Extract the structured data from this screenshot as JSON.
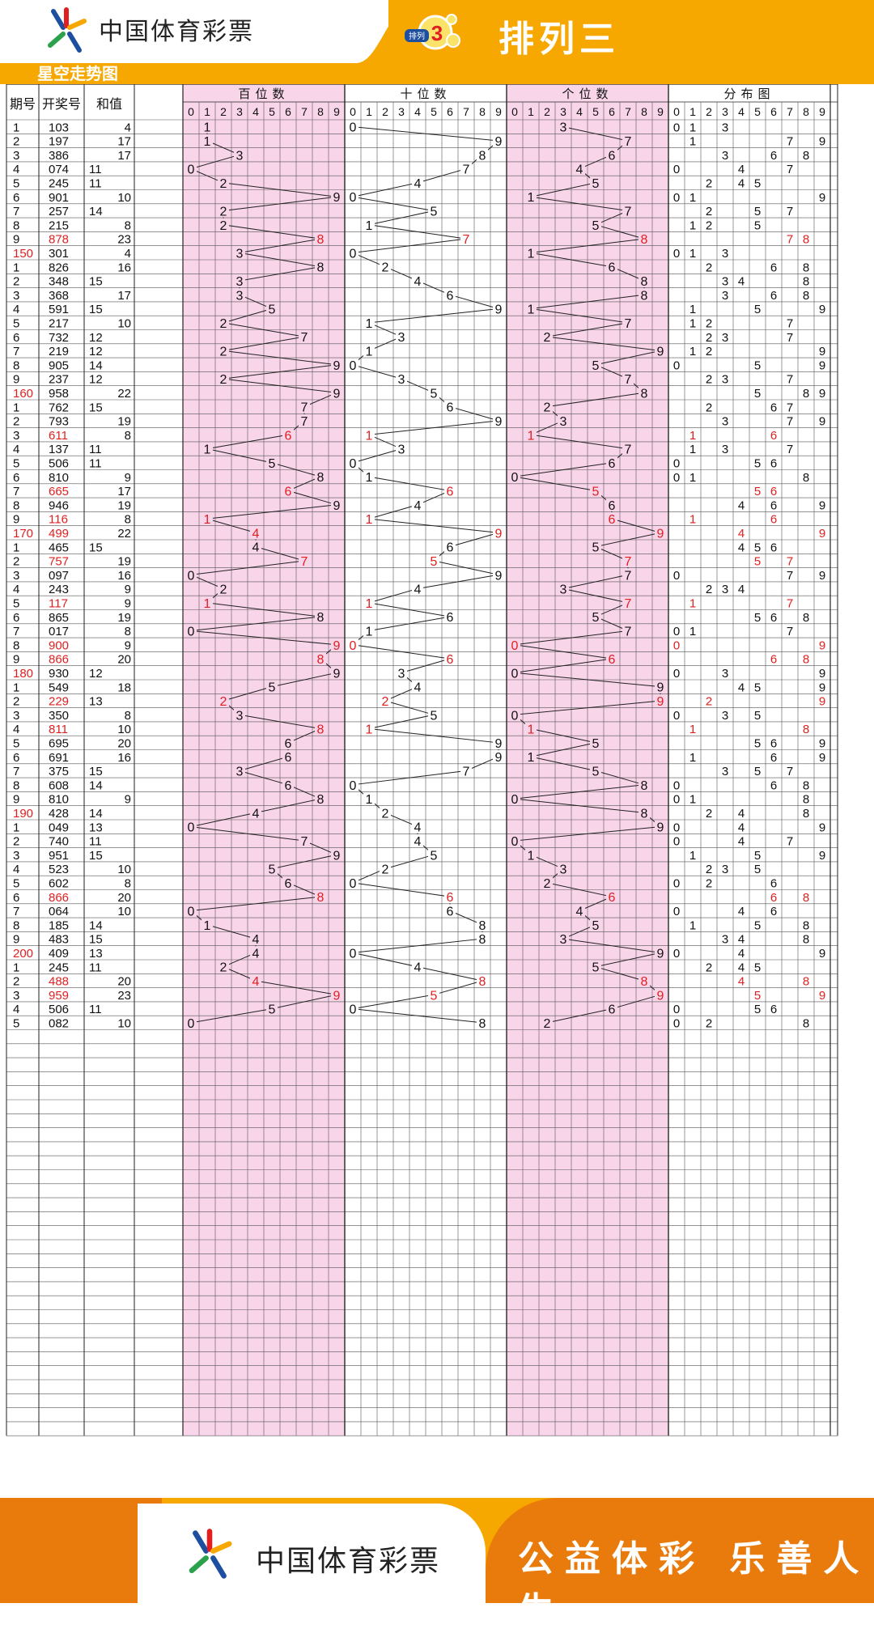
{
  "header": {
    "brand": "中国体育彩票",
    "badge_small": "排列",
    "badge_number": "3",
    "title": "排列三",
    "subtitle": "星空走势图"
  },
  "footer": {
    "brand": "中国体育彩票",
    "slogan": "公益体彩 乐善人生"
  },
  "table": {
    "col_headers": [
      "期号",
      "开奖号",
      "和值"
    ],
    "section_headers": [
      "百位数",
      "十位数",
      "个位数",
      "分布图"
    ],
    "digit_labels": [
      "0",
      "1",
      "2",
      "3",
      "4",
      "5",
      "6",
      "7",
      "8",
      "9"
    ],
    "rows": [
      {
        "issue": "1",
        "num": "103",
        "sum": "4",
        "red": false,
        "issue_red": false
      },
      {
        "issue": "2",
        "num": "197",
        "sum": "17",
        "red": false,
        "issue_red": false
      },
      {
        "issue": "3",
        "num": "386",
        "sum": "17",
        "red": false,
        "issue_red": false
      },
      {
        "issue": "4",
        "num": "074",
        "sum": "11",
        "red": false,
        "issue_red": false
      },
      {
        "issue": "5",
        "num": "245",
        "sum": "11",
        "red": false,
        "issue_red": false
      },
      {
        "issue": "6",
        "num": "901",
        "sum": "10",
        "red": false,
        "issue_red": false
      },
      {
        "issue": "7",
        "num": "257",
        "sum": "14",
        "red": false,
        "issue_red": false
      },
      {
        "issue": "8",
        "num": "215",
        "sum": "8",
        "red": false,
        "issue_red": false
      },
      {
        "issue": "9",
        "num": "878",
        "sum": "23",
        "red": true,
        "issue_red": false
      },
      {
        "issue": "150",
        "num": "301",
        "sum": "4",
        "red": false,
        "issue_red": true
      },
      {
        "issue": "1",
        "num": "826",
        "sum": "16",
        "red": false,
        "issue_red": false
      },
      {
        "issue": "2",
        "num": "348",
        "sum": "15",
        "red": false,
        "issue_red": false
      },
      {
        "issue": "3",
        "num": "368",
        "sum": "17",
        "red": false,
        "issue_red": false
      },
      {
        "issue": "4",
        "num": "591",
        "sum": "15",
        "red": false,
        "issue_red": false
      },
      {
        "issue": "5",
        "num": "217",
        "sum": "10",
        "red": false,
        "issue_red": false
      },
      {
        "issue": "6",
        "num": "732",
        "sum": "12",
        "red": false,
        "issue_red": false
      },
      {
        "issue": "7",
        "num": "219",
        "sum": "12",
        "red": false,
        "issue_red": false
      },
      {
        "issue": "8",
        "num": "905",
        "sum": "14",
        "red": false,
        "issue_red": false
      },
      {
        "issue": "9",
        "num": "237",
        "sum": "12",
        "red": false,
        "issue_red": false
      },
      {
        "issue": "160",
        "num": "958",
        "sum": "22",
        "red": false,
        "issue_red": true
      },
      {
        "issue": "1",
        "num": "762",
        "sum": "15",
        "red": false,
        "issue_red": false
      },
      {
        "issue": "2",
        "num": "793",
        "sum": "19",
        "red": false,
        "issue_red": false
      },
      {
        "issue": "3",
        "num": "611",
        "sum": "8",
        "red": true,
        "issue_red": false
      },
      {
        "issue": "4",
        "num": "137",
        "sum": "11",
        "red": false,
        "issue_red": false
      },
      {
        "issue": "5",
        "num": "506",
        "sum": "11",
        "red": false,
        "issue_red": false
      },
      {
        "issue": "6",
        "num": "810",
        "sum": "9",
        "red": false,
        "issue_red": false
      },
      {
        "issue": "7",
        "num": "665",
        "sum": "17",
        "red": true,
        "issue_red": false
      },
      {
        "issue": "8",
        "num": "946",
        "sum": "19",
        "red": false,
        "issue_red": false
      },
      {
        "issue": "9",
        "num": "116",
        "sum": "8",
        "red": true,
        "issue_red": false
      },
      {
        "issue": "170",
        "num": "499",
        "sum": "22",
        "red": true,
        "issue_red": true
      },
      {
        "issue": "1",
        "num": "465",
        "sum": "15",
        "red": false,
        "issue_red": false
      },
      {
        "issue": "2",
        "num": "757",
        "sum": "19",
        "red": true,
        "issue_red": false
      },
      {
        "issue": "3",
        "num": "097",
        "sum": "16",
        "red": false,
        "issue_red": false
      },
      {
        "issue": "4",
        "num": "243",
        "sum": "9",
        "red": false,
        "issue_red": false
      },
      {
        "issue": "5",
        "num": "117",
        "sum": "9",
        "red": true,
        "issue_red": false
      },
      {
        "issue": "6",
        "num": "865",
        "sum": "19",
        "red": false,
        "issue_red": false
      },
      {
        "issue": "7",
        "num": "017",
        "sum": "8",
        "red": false,
        "issue_red": false
      },
      {
        "issue": "8",
        "num": "900",
        "sum": "9",
        "red": true,
        "issue_red": false
      },
      {
        "issue": "9",
        "num": "866",
        "sum": "20",
        "red": true,
        "issue_red": false
      },
      {
        "issue": "180",
        "num": "930",
        "sum": "12",
        "red": false,
        "issue_red": true
      },
      {
        "issue": "1",
        "num": "549",
        "sum": "18",
        "red": false,
        "issue_red": false
      },
      {
        "issue": "2",
        "num": "229",
        "sum": "13",
        "red": true,
        "issue_red": false
      },
      {
        "issue": "3",
        "num": "350",
        "sum": "8",
        "red": false,
        "issue_red": false
      },
      {
        "issue": "4",
        "num": "811",
        "sum": "10",
        "red": true,
        "issue_red": false
      },
      {
        "issue": "5",
        "num": "695",
        "sum": "20",
        "red": false,
        "issue_red": false
      },
      {
        "issue": "6",
        "num": "691",
        "sum": "16",
        "red": false,
        "issue_red": false
      },
      {
        "issue": "7",
        "num": "375",
        "sum": "15",
        "red": false,
        "issue_red": false
      },
      {
        "issue": "8",
        "num": "608",
        "sum": "14",
        "red": false,
        "issue_red": false
      },
      {
        "issue": "9",
        "num": "810",
        "sum": "9",
        "red": false,
        "issue_red": false
      },
      {
        "issue": "190",
        "num": "428",
        "sum": "14",
        "red": false,
        "issue_red": true
      },
      {
        "issue": "1",
        "num": "049",
        "sum": "13",
        "red": false,
        "issue_red": false
      },
      {
        "issue": "2",
        "num": "740",
        "sum": "11",
        "red": false,
        "issue_red": false
      },
      {
        "issue": "3",
        "num": "951",
        "sum": "15",
        "red": false,
        "issue_red": false
      },
      {
        "issue": "4",
        "num": "523",
        "sum": "10",
        "red": false,
        "issue_red": false
      },
      {
        "issue": "5",
        "num": "602",
        "sum": "8",
        "red": false,
        "issue_red": false
      },
      {
        "issue": "6",
        "num": "866",
        "sum": "20",
        "red": true,
        "issue_red": false
      },
      {
        "issue": "7",
        "num": "064",
        "sum": "10",
        "red": false,
        "issue_red": false
      },
      {
        "issue": "8",
        "num": "185",
        "sum": "14",
        "red": false,
        "issue_red": false
      },
      {
        "issue": "9",
        "num": "483",
        "sum": "15",
        "red": false,
        "issue_red": false
      },
      {
        "issue": "200",
        "num": "409",
        "sum": "13",
        "red": false,
        "issue_red": true
      },
      {
        "issue": "1",
        "num": "245",
        "sum": "11",
        "red": false,
        "issue_red": false
      },
      {
        "issue": "2",
        "num": "488",
        "sum": "20",
        "red": true,
        "issue_red": false
      },
      {
        "issue": "3",
        "num": "959",
        "sum": "23",
        "red": true,
        "issue_red": false
      },
      {
        "issue": "4",
        "num": "506",
        "sum": "11",
        "red": false,
        "issue_red": false
      },
      {
        "issue": "5",
        "num": "082",
        "sum": "10",
        "red": false,
        "issue_red": false
      }
    ]
  },
  "colors": {
    "orange": "#f6a800",
    "orange_dark": "#e97b0c",
    "pink": "#f9d5ea",
    "red_text": "#e02020",
    "grid_line": "#555555"
  }
}
